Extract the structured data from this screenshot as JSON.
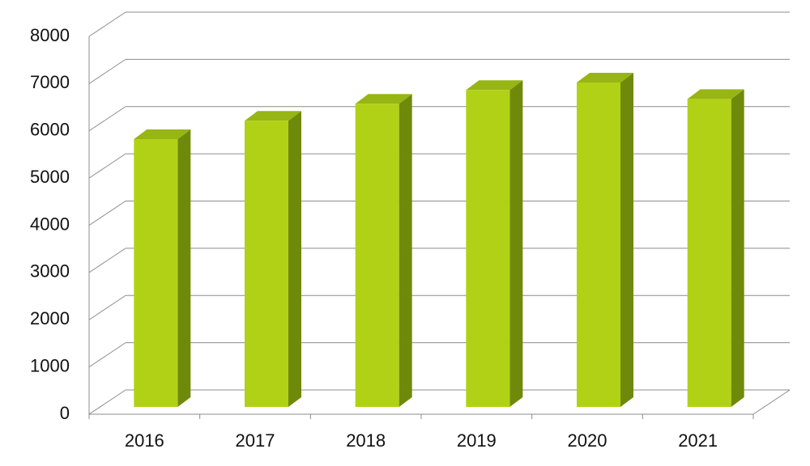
{
  "chart_data": {
    "type": "bar3d",
    "categories": [
      "2016",
      "2017",
      "2018",
      "2019",
      "2020",
      "2021"
    ],
    "values": [
      5670,
      6060,
      6420,
      6710,
      6870,
      6520
    ],
    "color": "#b1d117",
    "ylim": [
      0,
      8000
    ],
    "yticks": [
      0,
      1000,
      2000,
      3000,
      4000,
      5000,
      6000,
      7000,
      8000
    ],
    "grid": true
  }
}
